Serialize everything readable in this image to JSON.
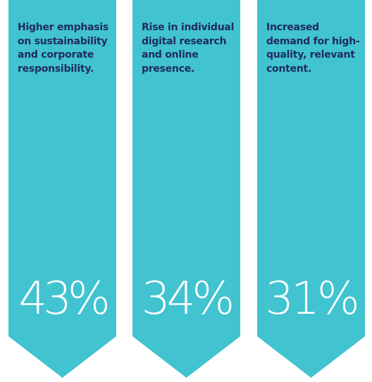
{
  "banners": [
    {
      "text": "Higher emphasis on sustainability and corporate responsibility.",
      "percent": "43%"
    },
    {
      "text": "Rise in individual digital research and online presence.",
      "percent": "34%"
    },
    {
      "text": "Increased demand for high-quality, relevant content.",
      "percent": "31%"
    }
  ],
  "colors": {
    "banner": "#41c3d0",
    "text": "#1f2b5e",
    "percent": "#ffffff",
    "background": "#ffffff"
  }
}
